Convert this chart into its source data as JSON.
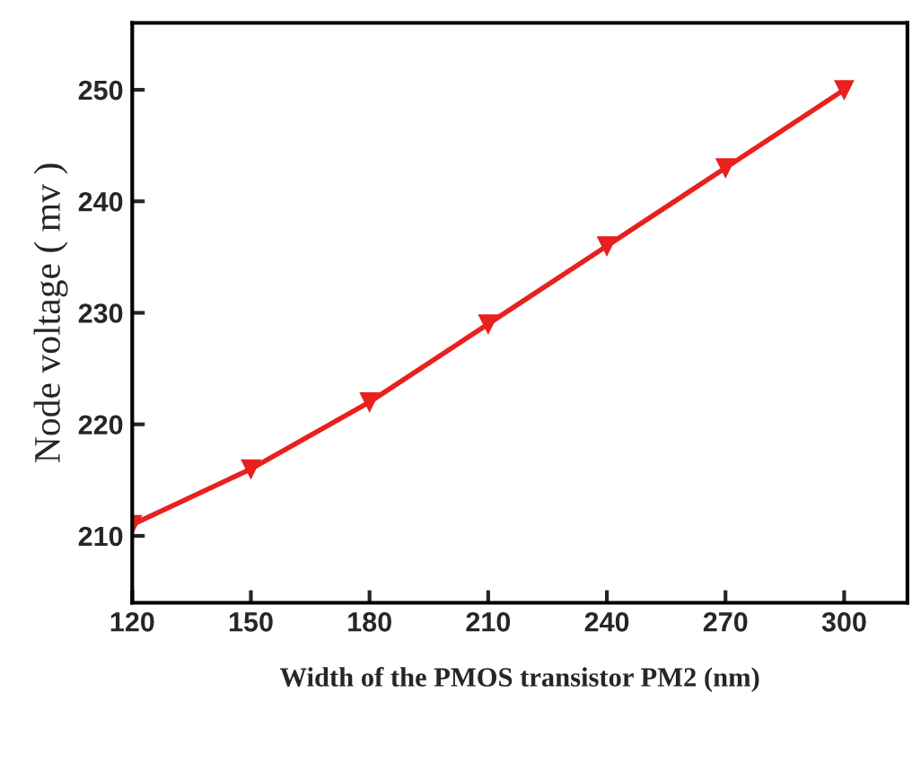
{
  "chart_data": {
    "type": "line",
    "xlabel": "Width of the PMOS transistor PM2 (nm)",
    "ylabel": "Node voltage ( mv )",
    "x": [
      120,
      150,
      180,
      210,
      240,
      270,
      300
    ],
    "series": [
      {
        "color": "#e8201e",
        "values": [
          211,
          216,
          222,
          229,
          236,
          243,
          250
        ]
      }
    ],
    "xlim": [
      120,
      316
    ],
    "ylim": [
      204,
      256
    ],
    "xticks": [
      120,
      150,
      180,
      210,
      240,
      270,
      300
    ],
    "yticks": [
      210,
      220,
      230,
      240,
      250
    ],
    "marker": "triangle",
    "line_style": "solid"
  }
}
